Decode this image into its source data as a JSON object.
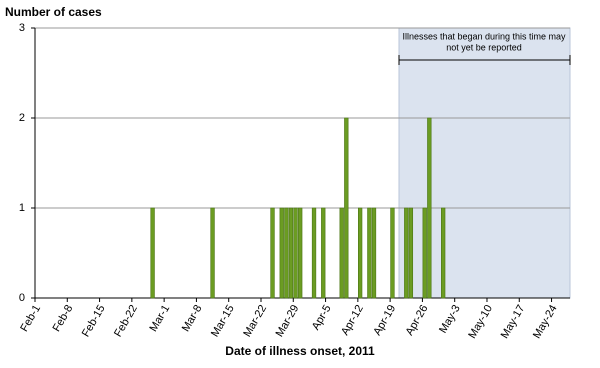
{
  "chart_data": {
    "type": "bar",
    "title": "Number of cases",
    "x_label": "Date of illness onset, 2011",
    "annotation": [
      "Illnesses that began during this time may",
      "not yet be reported"
    ],
    "categories": [
      "Feb-1",
      null,
      null,
      null,
      null,
      null,
      null,
      "Feb-8",
      null,
      null,
      null,
      null,
      null,
      null,
      "Feb-15",
      null,
      null,
      null,
      null,
      null,
      null,
      "Feb-22",
      null,
      null,
      null,
      null,
      null,
      null,
      "Mar-1",
      null,
      null,
      null,
      null,
      null,
      null,
      "Mar-8",
      null,
      null,
      null,
      null,
      null,
      null,
      "Mar-15",
      null,
      null,
      null,
      null,
      null,
      null,
      "Mar-22",
      null,
      null,
      null,
      null,
      null,
      null,
      "Mar-29",
      null,
      null,
      null,
      null,
      null,
      null,
      "Apr-5",
      null,
      null,
      null,
      null,
      null,
      null,
      "Apr-12",
      null,
      null,
      null,
      null,
      null,
      null,
      "Apr-19",
      null,
      null,
      null,
      null,
      null,
      null,
      "Apr-26",
      null,
      null,
      null,
      null,
      null,
      null,
      "May-3",
      null,
      null,
      null,
      null,
      null,
      null,
      "May-10",
      null,
      null,
      null,
      null,
      null,
      null,
      "May-17",
      null,
      null,
      null,
      null,
      null,
      null,
      "May-24",
      null,
      null,
      null
    ],
    "values": [
      0,
      0,
      0,
      0,
      0,
      0,
      0,
      0,
      0,
      0,
      0,
      0,
      0,
      0,
      0,
      0,
      0,
      0,
      0,
      0,
      0,
      0,
      0,
      0,
      0,
      1,
      0,
      0,
      0,
      0,
      0,
      0,
      0,
      0,
      0,
      0,
      0,
      0,
      1,
      0,
      0,
      0,
      0,
      0,
      0,
      0,
      0,
      0,
      0,
      0,
      0,
      1,
      0,
      1,
      1,
      1,
      1,
      1,
      0,
      0,
      1,
      0,
      1,
      0,
      0,
      0,
      1,
      2,
      0,
      0,
      1,
      0,
      1,
      1,
      0,
      0,
      0,
      1,
      0,
      0,
      1,
      1,
      0,
      0,
      1,
      2,
      0,
      0,
      1,
      0,
      0,
      0,
      0,
      0,
      0,
      0,
      0,
      0,
      0,
      0,
      0,
      0,
      0,
      0,
      0,
      0,
      0,
      0,
      0,
      0,
      0,
      0,
      0,
      0,
      0,
      0
    ],
    "color": "#6b9c22",
    "ylim": [
      0,
      3
    ],
    "yticks": [
      0,
      1,
      2,
      3
    ],
    "grid": true
  }
}
